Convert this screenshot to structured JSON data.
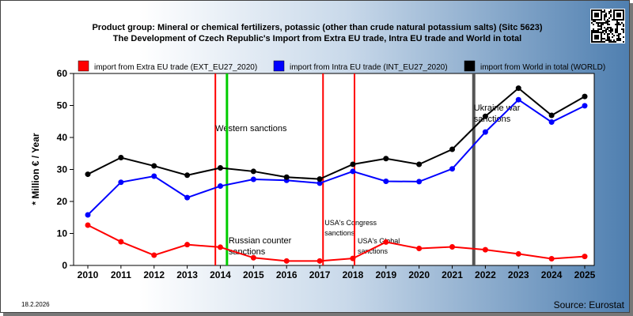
{
  "date": "18.2.2026",
  "source": "Source: Eurostat",
  "chart_data": {
    "type": "line",
    "title": "Product group: Mineral or chemical fertilizers, potassic (other than crude natural potassium salts) (Sitc 5623)",
    "subtitle": "The Development of Czech Republic's Import from Extra EU trade, Intra EU trade and World in total",
    "ylabel": "* Million € / Year",
    "xlabel": "",
    "ylim": [
      0,
      60
    ],
    "yticks": [
      0,
      10,
      20,
      30,
      40,
      50,
      60
    ],
    "grid": false,
    "legend_position": "top",
    "x": [
      "2010",
      "2011",
      "2012",
      "2013",
      "2014",
      "2015",
      "2016",
      "2017",
      "2018",
      "2019",
      "2020",
      "2021",
      "2022",
      "2023",
      "2024",
      "2025"
    ],
    "series": [
      {
        "name": "import from Extra EU trade (EXT_EU27_2020)",
        "color": "#ff0000",
        "values": [
          12.6,
          7.4,
          3.2,
          6.5,
          5.7,
          2.4,
          1.4,
          1.4,
          2.2,
          7.3,
          5.3,
          5.8,
          4.9,
          3.6,
          2.1,
          2.8
        ]
      },
      {
        "name": "import from Intra EU trade (INT_EU27_2020)",
        "color": "#0000ff",
        "values": [
          15.8,
          26.0,
          27.9,
          21.2,
          24.8,
          26.9,
          26.6,
          25.7,
          29.4,
          26.3,
          26.2,
          30.2,
          41.7,
          51.8,
          44.8,
          49.9
        ]
      },
      {
        "name": "import from World in total (WORLD)",
        "color": "#000000",
        "values": [
          28.5,
          33.7,
          31.1,
          28.2,
          30.5,
          29.4,
          27.6,
          27.0,
          31.6,
          33.4,
          31.6,
          36.3,
          46.6,
          55.4,
          46.9,
          52.8
        ]
      }
    ],
    "events": [
      {
        "position": 2013.85,
        "color": "#ff0000",
        "label1": "Western sanctions",
        "label2": "",
        "style": "normal"
      },
      {
        "position": 2014.2,
        "color": "#00cc00",
        "label1": "Russian counter",
        "label2": "sanctions",
        "style": "normal"
      },
      {
        "position": 2017.1,
        "color": "#ff0000",
        "label1": "USA's Congress",
        "label2": "sanctions",
        "style": "small"
      },
      {
        "position": 2018.05,
        "color": "#ff0000",
        "label1": "USA's Global",
        "label2": "sanctions",
        "style": "small"
      },
      {
        "position": 2021.65,
        "color": "#555555",
        "label1": "Ukraine war",
        "label2": "sanctions",
        "style": "normal"
      }
    ]
  }
}
